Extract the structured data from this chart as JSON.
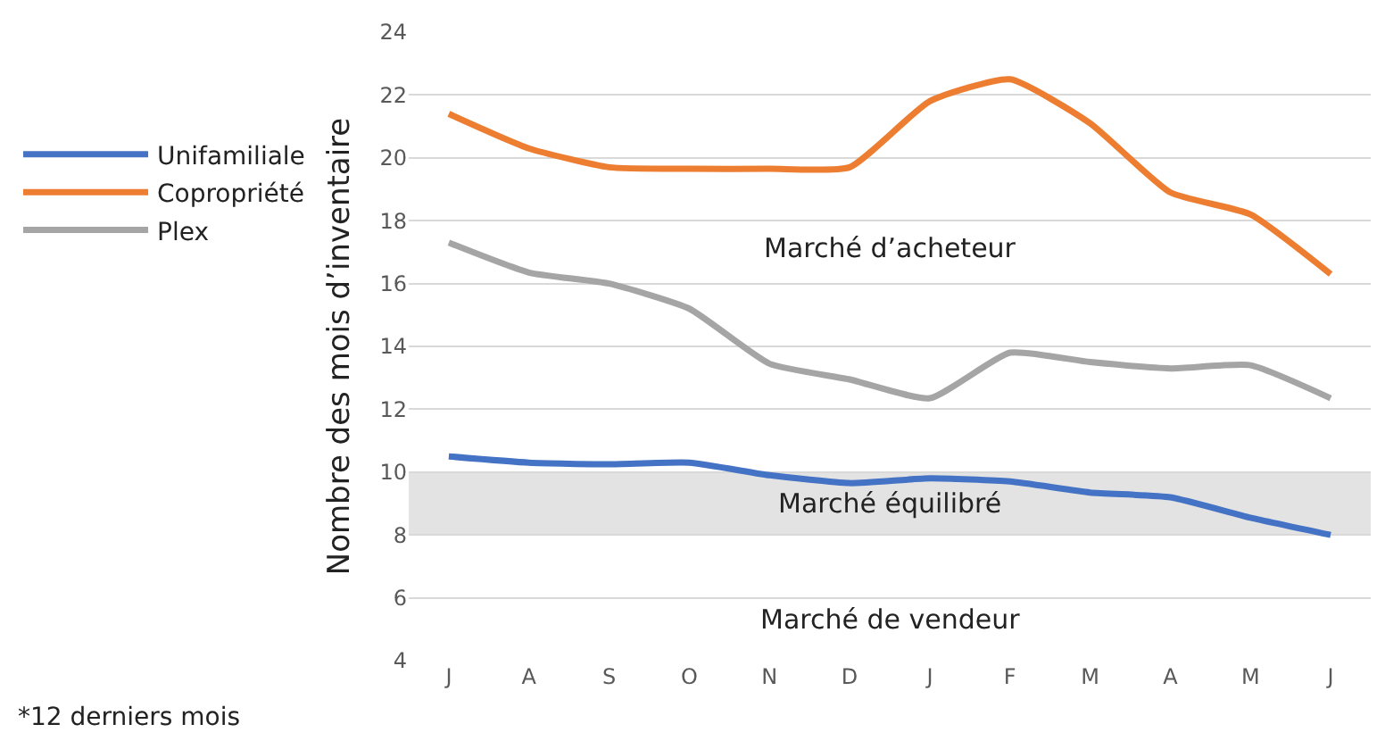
{
  "chart_data": {
    "type": "line",
    "ylabel": "Nombre des mois d’inventaire",
    "categories": [
      "J",
      "A",
      "S",
      "O",
      "N",
      "D",
      "J",
      "F",
      "M",
      "A",
      "M",
      "J"
    ],
    "series": [
      {
        "name": "Unifamiliale",
        "color": "#4472c4",
        "values": [
          10.5,
          10.3,
          10.25,
          10.3,
          9.9,
          9.65,
          9.8,
          9.7,
          9.35,
          9.2,
          8.55,
          8.0
        ]
      },
      {
        "name": "Copropriété",
        "color": "#ed7d31",
        "values": [
          21.4,
          20.3,
          19.7,
          19.65,
          19.65,
          19.7,
          21.8,
          22.5,
          21.1,
          18.9,
          18.2,
          16.3
        ]
      },
      {
        "name": "Plex",
        "color": "#a5a5a5",
        "values": [
          17.3,
          16.35,
          16.0,
          15.2,
          13.45,
          12.95,
          12.35,
          13.8,
          13.5,
          13.3,
          13.4,
          12.35
        ]
      }
    ],
    "ylim": [
      4,
      24
    ],
    "yticks": [
      4,
      6,
      8,
      10,
      12,
      14,
      16,
      18,
      20,
      22,
      24
    ],
    "bands": [
      {
        "axis": "y",
        "from": 8,
        "to": 10,
        "label": "Marché équilibré",
        "color": "#e0e0e0"
      }
    ],
    "annotations": [
      "Marché d’acheteur",
      "Marché de vendeur",
      "*12 derniers mois"
    ],
    "grid": "y",
    "legend": "left",
    "marker": "none",
    "line_style": "solid"
  }
}
